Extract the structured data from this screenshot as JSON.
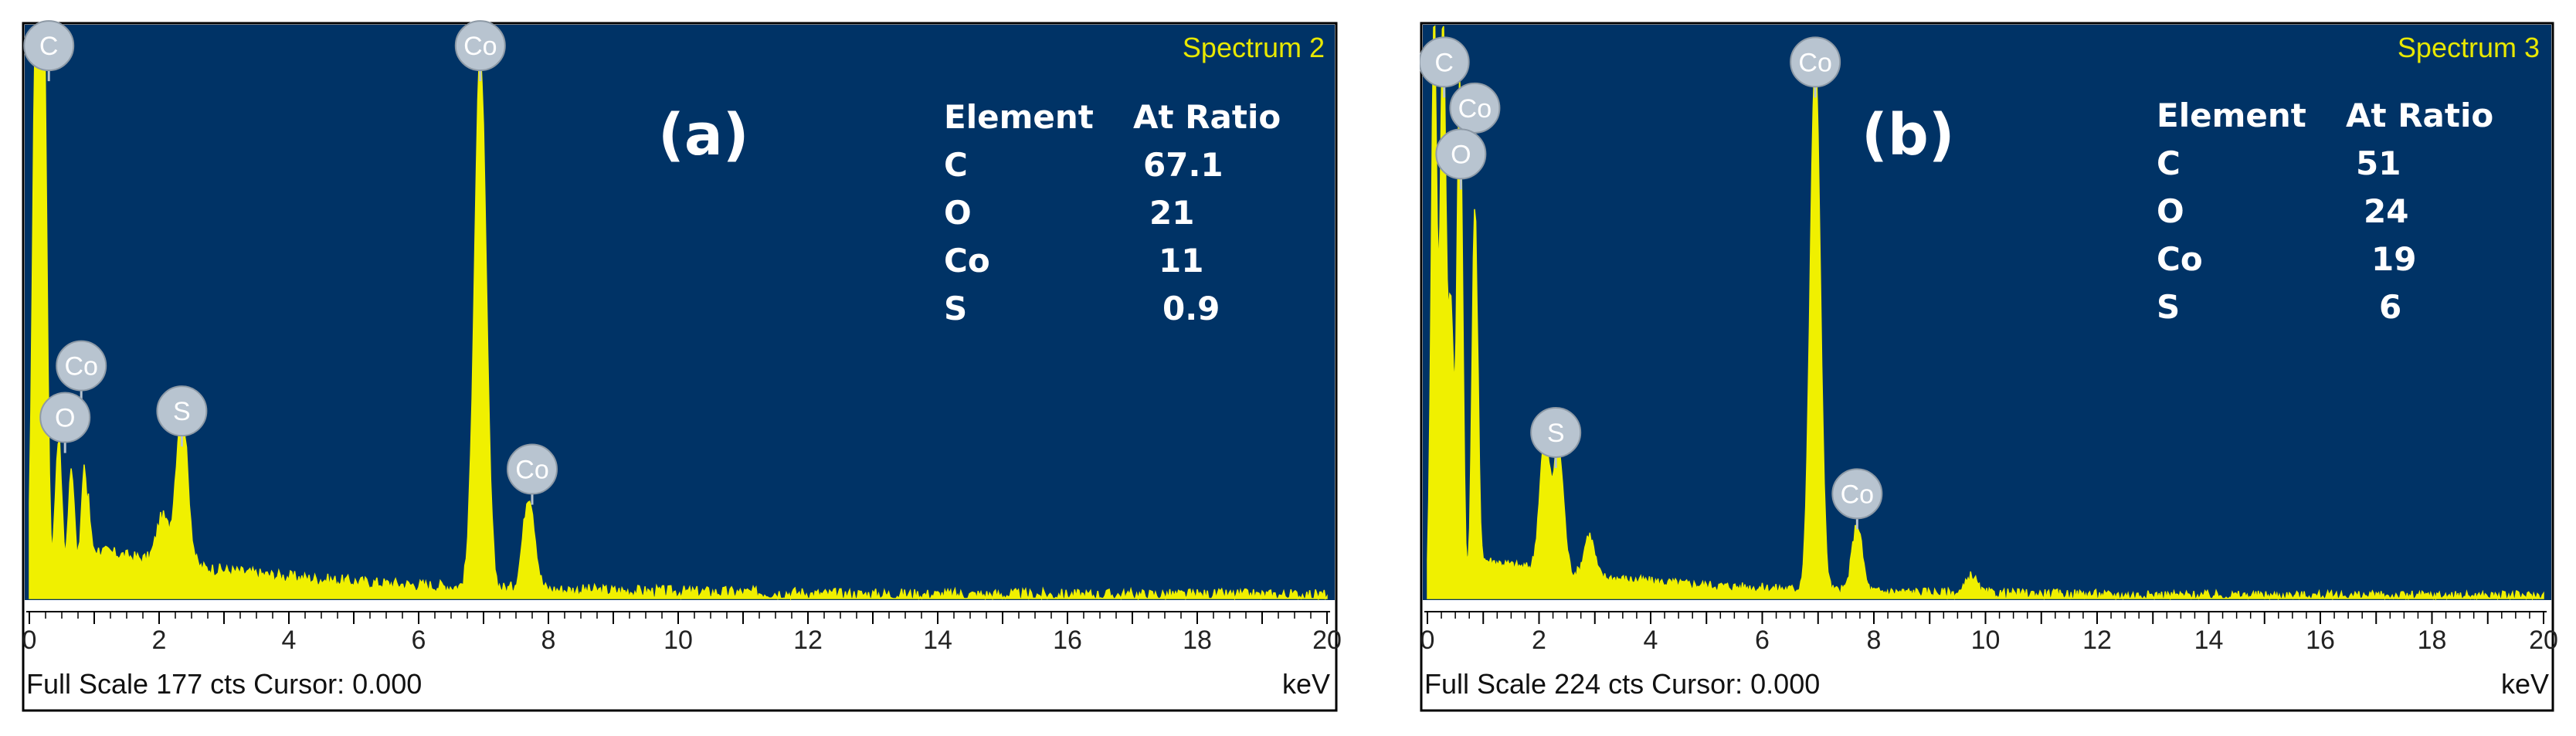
{
  "colors": {
    "plot_background": "#003366",
    "spectrum": "#f0f000",
    "marker": "#b8c4d0",
    "frame": "#000000",
    "text_light": "#ffffff"
  },
  "chart_data": [
    {
      "type": "area",
      "panel_label": "(a)",
      "spectrum_label": "Spectrum 2",
      "footer": "Full Scale 177 cts Cursor: 0.000",
      "xlabel": "keV",
      "xlim": [
        0,
        20
      ],
      "x_ticks": [
        "0",
        "2",
        "4",
        "6",
        "8",
        "10",
        "12",
        "14",
        "16",
        "18",
        "20"
      ],
      "ylim": [
        0,
        177
      ],
      "element_table": {
        "headers": [
          "Element",
          "At Ratio"
        ],
        "rows": [
          [
            "C",
            "67.1"
          ],
          [
            "O",
            "21"
          ],
          [
            "Co",
            "11"
          ],
          [
            "S",
            "0.9"
          ]
        ]
      },
      "peaks": [
        {
          "keV": 0.1,
          "cts": 177
        },
        {
          "keV": 0.22,
          "cts": 177
        },
        {
          "keV": 0.45,
          "cts": 46
        },
        {
          "keV": 0.65,
          "cts": 36
        },
        {
          "keV": 0.85,
          "cts": 36
        },
        {
          "keV": 2.05,
          "cts": 14
        },
        {
          "keV": 2.35,
          "cts": 48
        },
        {
          "keV": 6.95,
          "cts": 165
        },
        {
          "keV": 7.7,
          "cts": 29
        }
      ],
      "annotations": [
        {
          "text": "C",
          "keV": 0.3,
          "cts": 171
        },
        {
          "text": "Co",
          "keV": 0.8,
          "cts": 72
        },
        {
          "text": "O",
          "keV": 0.55,
          "cts": 56
        },
        {
          "text": "S",
          "keV": 2.35,
          "cts": 58
        },
        {
          "text": "Co",
          "keV": 6.95,
          "cts": 171
        },
        {
          "text": "Co",
          "keV": 7.75,
          "cts": 40
        }
      ]
    },
    {
      "type": "area",
      "panel_label": "(b)",
      "spectrum_label": "Spectrum 3",
      "footer": "Full Scale 224 cts Cursor: 0.000",
      "xlabel": "keV",
      "xlim": [
        0,
        20
      ],
      "x_ticks": [
        "0",
        "2",
        "4",
        "6",
        "8",
        "10",
        "12",
        "14",
        "16",
        "18",
        "20"
      ],
      "ylim": [
        0,
        224
      ],
      "element_table": {
        "headers": [
          "Element",
          "At Ratio"
        ],
        "rows": [
          [
            "C",
            "51"
          ],
          [
            "O",
            "24"
          ],
          [
            "Co",
            "19"
          ],
          [
            "S",
            "6"
          ]
        ]
      },
      "peaks": [
        {
          "keV": 0.12,
          "cts": 224
        },
        {
          "keV": 0.28,
          "cts": 224
        },
        {
          "keV": 0.42,
          "cts": 110
        },
        {
          "keV": 0.58,
          "cts": 200
        },
        {
          "keV": 0.85,
          "cts": 150
        },
        {
          "keV": 2.1,
          "cts": 50
        },
        {
          "keV": 2.35,
          "cts": 48
        },
        {
          "keV": 2.9,
          "cts": 16
        },
        {
          "keV": 6.95,
          "cts": 208
        },
        {
          "keV": 7.7,
          "cts": 26
        },
        {
          "keV": 9.75,
          "cts": 7
        }
      ],
      "annotations": [
        {
          "text": "C",
          "keV": 0.3,
          "cts": 210
        },
        {
          "text": "Co",
          "keV": 0.85,
          "cts": 192
        },
        {
          "text": "O",
          "keV": 0.6,
          "cts": 174
        },
        {
          "text": "S",
          "keV": 2.3,
          "cts": 65
        },
        {
          "text": "Co",
          "keV": 6.95,
          "cts": 210
        },
        {
          "text": "Co",
          "keV": 7.7,
          "cts": 41
        }
      ]
    }
  ]
}
